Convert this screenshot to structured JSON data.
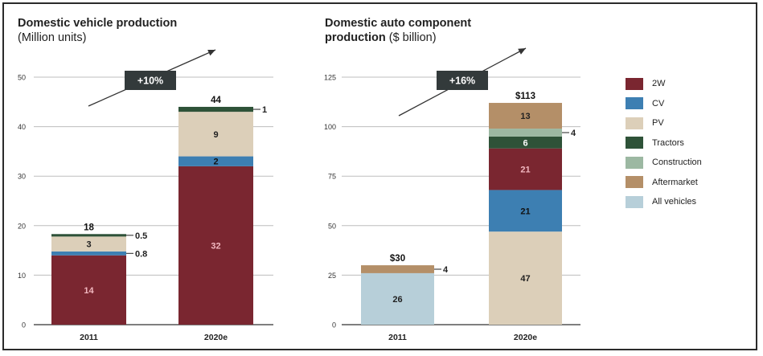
{
  "colors": {
    "2W": "#7a2630",
    "CV": "#3d7fb2",
    "PV": "#dccfb9",
    "Tractors": "#2e5238",
    "Construction": "#9cb8a2",
    "Aftermarket": "#b48f68",
    "All vehicles": "#b7cfd9",
    "grid": "#bdbdbd",
    "arrow_box": "#333a3b"
  },
  "legend": [
    "2W",
    "CV",
    "PV",
    "Tractors",
    "Construction",
    "Aftermarket",
    "All vehicles"
  ],
  "chart_data": [
    {
      "type": "bar",
      "stacked": true,
      "title": "Domestic vehicle production",
      "subtitle": "(Million units)",
      "categories": [
        "2011",
        "2020e"
      ],
      "ylim": [
        0,
        50
      ],
      "yticks": [
        "0",
        "10",
        "20",
        "30",
        "40",
        "50"
      ],
      "grid": true,
      "series": [
        {
          "name": "2W",
          "values": [
            14,
            32
          ]
        },
        {
          "name": "CV",
          "values": [
            0.8,
            2
          ]
        },
        {
          "name": "PV",
          "values": [
            3,
            9
          ]
        },
        {
          "name": "Tractors",
          "values": [
            0.5,
            1
          ]
        }
      ],
      "inside_labels": [
        [
          "14",
          "",
          "3",
          ""
        ],
        [
          "32",
          "2",
          "9",
          ""
        ]
      ],
      "outside_labels": [
        [
          "",
          "0.8",
          "",
          "0.5"
        ],
        [
          "",
          "",
          "",
          "1"
        ]
      ],
      "totals": [
        "18",
        "44"
      ],
      "growth": "+10%"
    },
    {
      "type": "bar",
      "stacked": true,
      "title": "Domestic auto component",
      "title_line2": "production",
      "subtitle": "($ billion)",
      "categories": [
        "2011",
        "2020e"
      ],
      "ylim": [
        0,
        125
      ],
      "yticks": [
        "0",
        "25",
        "50",
        "75",
        "100",
        "125"
      ],
      "grid": true,
      "series": [
        {
          "name": "All vehicles",
          "values": [
            26,
            0
          ]
        },
        {
          "name": "PV",
          "values": [
            0,
            47
          ]
        },
        {
          "name": "CV",
          "values": [
            0,
            21
          ]
        },
        {
          "name": "2W",
          "values": [
            0,
            21
          ]
        },
        {
          "name": "Tractors",
          "values": [
            0,
            6
          ]
        },
        {
          "name": "Construction",
          "values": [
            0,
            4
          ]
        },
        {
          "name": "Aftermarket",
          "values": [
            4,
            13
          ]
        }
      ],
      "inside_labels": [
        [
          "26",
          "",
          "",
          "",
          "",
          "",
          ""
        ],
        [
          "",
          "47",
          "21",
          "21",
          "6",
          "",
          "13"
        ]
      ],
      "outside_labels": [
        [
          "",
          "",
          "",
          "",
          "",
          "",
          "4"
        ],
        [
          "",
          "",
          "",
          "",
          "",
          "4",
          ""
        ]
      ],
      "totals": [
        "$30",
        "$113"
      ],
      "growth": "+16%"
    }
  ]
}
